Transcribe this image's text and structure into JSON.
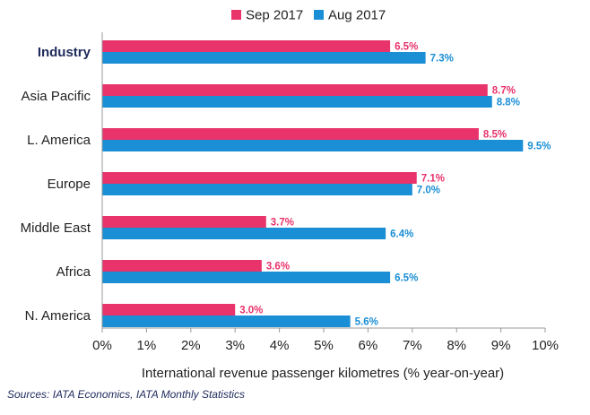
{
  "chart_data": {
    "type": "bar",
    "orientation": "horizontal",
    "categories": [
      "Industry",
      "Asia Pacific",
      "L. America",
      "Europe",
      "Middle East",
      "Africa",
      "N. America"
    ],
    "series": [
      {
        "name": "Sep 2017",
        "color": "#e8336b",
        "values": [
          6.5,
          8.7,
          8.5,
          7.1,
          3.7,
          3.6,
          3.0
        ],
        "labels": [
          "6.5%",
          "8.7%",
          "8.5%",
          "7.1%",
          "3.7%",
          "3.6%",
          "3.0%"
        ]
      },
      {
        "name": "Aug 2017",
        "color": "#1a8fd5",
        "values": [
          7.3,
          8.8,
          9.5,
          7.0,
          6.4,
          6.5,
          5.6
        ],
        "labels": [
          "7.3%",
          "8.8%",
          "9.5%",
          "7.0%",
          "6.4%",
          "6.5%",
          "5.6%"
        ]
      }
    ],
    "xlabel": "International revenue passenger kilometres (% year-on-year)",
    "xlim": [
      0,
      10
    ],
    "xticks": [
      "0%",
      "1%",
      "2%",
      "3%",
      "4%",
      "5%",
      "6%",
      "7%",
      "8%",
      "9%",
      "10%"
    ],
    "grid": false,
    "legend": "top-center",
    "bold_category": "Industry"
  },
  "source": "Sources: IATA Economics, IATA Monthly Statistics"
}
